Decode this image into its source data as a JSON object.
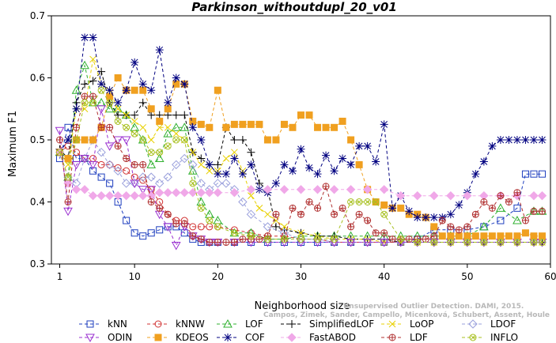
{
  "chart_data": {
    "type": "line",
    "title": "Parkinson_withoutdupl_20_v01",
    "xlabel": "Neighborhood size",
    "ylabel": "Maximum F1",
    "xlim": [
      0,
      60
    ],
    "ylim": [
      0.3,
      0.7
    ],
    "xticks": [
      1,
      10,
      20,
      30,
      40,
      50,
      60
    ],
    "yticks": [
      0.3,
      0.4,
      0.5,
      0.6,
      0.7
    ],
    "legend_position": "bottom",
    "watermark": [
      "Unsupervised Outlier Detection. DAMI, 2015.",
      "Campos, Zimek, Sander, Campello, Micenková, Schubert, Assent, Houle"
    ],
    "series": [
      {
        "name": "kNN",
        "color": "#1f3fbf",
        "marker": "square",
        "x": [
          1,
          2,
          3,
          4,
          5,
          6,
          7,
          8,
          9,
          10,
          11,
          12,
          13,
          14,
          15,
          16,
          17,
          18,
          19,
          20,
          22,
          24,
          26,
          28,
          30,
          32,
          34,
          36,
          38,
          40,
          42,
          44,
          46,
          48,
          50,
          52,
          54,
          56,
          57,
          58,
          59
        ],
        "y": [
          0.47,
          0.52,
          0.47,
          0.47,
          0.45,
          0.44,
          0.43,
          0.4,
          0.37,
          0.35,
          0.345,
          0.35,
          0.355,
          0.36,
          0.36,
          0.35,
          0.34,
          0.335,
          0.335,
          0.335,
          0.335,
          0.335,
          0.335,
          0.335,
          0.335,
          0.335,
          0.335,
          0.335,
          0.335,
          0.335,
          0.335,
          0.34,
          0.355,
          0.355,
          0.355,
          0.36,
          0.37,
          0.39,
          0.445,
          0.445,
          0.445
        ]
      },
      {
        "name": "kNNW",
        "color": "#d03030",
        "marker": "circle",
        "x": [
          1,
          2,
          3,
          4,
          5,
          6,
          7,
          8,
          9,
          10,
          11,
          12,
          13,
          14,
          15,
          16,
          17,
          18,
          19,
          20,
          22,
          24,
          26,
          28,
          30,
          32,
          34,
          36,
          38,
          40,
          42,
          44,
          46,
          48,
          50,
          52,
          54,
          56,
          58,
          59
        ],
        "y": [
          0.48,
          0.49,
          0.48,
          0.47,
          0.47,
          0.46,
          0.46,
          0.455,
          0.45,
          0.44,
          0.435,
          0.42,
          0.4,
          0.38,
          0.37,
          0.37,
          0.36,
          0.36,
          0.36,
          0.36,
          0.355,
          0.35,
          0.345,
          0.345,
          0.34,
          0.34,
          0.335,
          0.335,
          0.335,
          0.335,
          0.335,
          0.335,
          0.335,
          0.335,
          0.335,
          0.335,
          0.335,
          0.335,
          0.335,
          0.335
        ]
      },
      {
        "name": "LOF",
        "color": "#2fb02f",
        "marker": "triangle",
        "x": [
          1,
          2,
          3,
          4,
          5,
          6,
          7,
          8,
          9,
          10,
          11,
          12,
          13,
          14,
          15,
          16,
          17,
          18,
          19,
          20,
          22,
          24,
          26,
          28,
          30,
          32,
          34,
          36,
          38,
          40,
          42,
          44,
          46,
          48,
          50,
          52,
          54,
          56,
          58,
          59
        ],
        "y": [
          0.48,
          0.44,
          0.58,
          0.62,
          0.56,
          0.56,
          0.55,
          0.55,
          0.54,
          0.52,
          0.5,
          0.46,
          0.47,
          0.51,
          0.52,
          0.52,
          0.45,
          0.4,
          0.38,
          0.37,
          0.35,
          0.35,
          0.34,
          0.34,
          0.345,
          0.345,
          0.345,
          0.345,
          0.345,
          0.345,
          0.345,
          0.345,
          0.345,
          0.345,
          0.345,
          0.36,
          0.39,
          0.37,
          0.385,
          0.385
        ]
      },
      {
        "name": "SimplifiedLOF",
        "color": "#000000",
        "marker": "plus",
        "x": [
          1,
          2,
          3,
          4,
          5,
          6,
          7,
          8,
          9,
          10,
          11,
          12,
          13,
          14,
          15,
          16,
          17,
          18,
          19,
          20,
          21,
          22,
          23,
          24,
          25,
          26,
          27,
          28,
          30,
          32,
          34,
          36,
          38,
          40,
          42,
          44,
          46,
          48,
          50,
          52,
          54,
          56,
          58,
          59
        ],
        "y": [
          0.485,
          0.47,
          0.56,
          0.59,
          0.595,
          0.61,
          0.56,
          0.54,
          0.54,
          0.54,
          0.56,
          0.54,
          0.54,
          0.54,
          0.54,
          0.54,
          0.48,
          0.47,
          0.46,
          0.46,
          0.52,
          0.5,
          0.5,
          0.48,
          0.43,
          0.42,
          0.36,
          0.355,
          0.35,
          0.345,
          0.345,
          0.34,
          0.34,
          0.34,
          0.335,
          0.335,
          0.335,
          0.335,
          0.335,
          0.335,
          0.335,
          0.335,
          0.335,
          0.335
        ]
      },
      {
        "name": "LoOP",
        "color": "#e8d000",
        "marker": "cross",
        "x": [
          1,
          2,
          3,
          4,
          5,
          6,
          7,
          8,
          9,
          10,
          11,
          12,
          13,
          14,
          15,
          16,
          17,
          18,
          19,
          20,
          21,
          22,
          23,
          24,
          25,
          26,
          27,
          28,
          30,
          32,
          34,
          36,
          38,
          40,
          42,
          44,
          46,
          48,
          50,
          52,
          54,
          56,
          58,
          59
        ],
        "y": [
          0.48,
          0.46,
          0.55,
          0.55,
          0.63,
          0.59,
          0.58,
          0.55,
          0.54,
          0.53,
          0.52,
          0.5,
          0.52,
          0.52,
          0.51,
          0.5,
          0.48,
          0.46,
          0.45,
          0.45,
          0.47,
          0.48,
          0.45,
          0.41,
          0.39,
          0.38,
          0.37,
          0.36,
          0.35,
          0.345,
          0.34,
          0.34,
          0.34,
          0.335,
          0.335,
          0.335,
          0.335,
          0.335,
          0.335,
          0.335,
          0.335,
          0.335,
          0.335,
          0.335
        ]
      },
      {
        "name": "LDOF",
        "color": "#9aa0dc",
        "marker": "diamond",
        "x": [
          1,
          2,
          3,
          4,
          5,
          6,
          7,
          8,
          9,
          10,
          11,
          12,
          13,
          14,
          15,
          16,
          17,
          18,
          19,
          20,
          21,
          22,
          23,
          24,
          26,
          28,
          30,
          32,
          34,
          36,
          38,
          40,
          42,
          44,
          46,
          48,
          50,
          52,
          54,
          56,
          58,
          59
        ],
        "y": [
          0.48,
          0.44,
          0.43,
          0.47,
          0.5,
          0.48,
          0.46,
          0.45,
          0.43,
          0.43,
          0.44,
          0.44,
          0.43,
          0.44,
          0.46,
          0.47,
          0.46,
          0.43,
          0.42,
          0.43,
          0.43,
          0.42,
          0.4,
          0.38,
          0.36,
          0.35,
          0.34,
          0.34,
          0.335,
          0.335,
          0.335,
          0.335,
          0.335,
          0.335,
          0.335,
          0.335,
          0.335,
          0.335,
          0.335,
          0.335,
          0.335,
          0.335
        ]
      },
      {
        "name": "ODIN",
        "color": "#9a30d0",
        "marker": "triangle-down",
        "x": [
          1,
          2,
          3,
          4,
          5,
          6,
          7,
          8,
          9,
          10,
          11,
          12,
          13,
          14,
          15,
          16,
          17,
          18,
          19,
          20,
          22,
          24,
          26,
          28,
          30,
          32,
          34,
          36,
          38,
          40,
          42,
          44,
          46,
          48,
          50,
          52,
          54,
          56,
          58,
          59
        ],
        "y": [
          0.515,
          0.385,
          0.46,
          0.47,
          0.46,
          0.55,
          0.49,
          0.5,
          0.5,
          0.43,
          0.42,
          0.42,
          0.38,
          0.36,
          0.33,
          0.36,
          0.345,
          0.34,
          0.335,
          0.335,
          0.335,
          0.335,
          0.335,
          0.335,
          0.335,
          0.335,
          0.335,
          0.335,
          0.335,
          0.335,
          0.335,
          0.335,
          0.335,
          0.335,
          0.335,
          0.335,
          0.335,
          0.335,
          0.335,
          0.335
        ]
      },
      {
        "name": "KDEOS",
        "color": "#f0a020",
        "marker": "square-filled",
        "x": [
          1,
          2,
          3,
          4,
          5,
          6,
          7,
          8,
          9,
          10,
          11,
          12,
          13,
          14,
          15,
          16,
          17,
          18,
          19,
          20,
          21,
          22,
          23,
          24,
          25,
          26,
          27,
          28,
          29,
          30,
          31,
          32,
          33,
          34,
          35,
          36,
          37,
          38,
          39,
          40,
          41,
          42,
          43,
          44,
          45,
          46,
          47,
          48,
          49,
          50,
          51,
          52,
          53,
          54,
          55,
          56,
          57,
          58,
          59
        ],
        "y": [
          0.48,
          0.47,
          0.5,
          0.5,
          0.5,
          0.52,
          0.57,
          0.6,
          0.58,
          0.58,
          0.58,
          0.55,
          0.53,
          0.55,
          0.59,
          0.59,
          0.53,
          0.525,
          0.52,
          0.58,
          0.52,
          0.525,
          0.525,
          0.525,
          0.525,
          0.5,
          0.5,
          0.525,
          0.52,
          0.54,
          0.54,
          0.52,
          0.52,
          0.52,
          0.53,
          0.5,
          0.46,
          0.42,
          0.4,
          0.395,
          0.39,
          0.39,
          0.38,
          0.38,
          0.375,
          0.36,
          0.345,
          0.345,
          0.345,
          0.345,
          0.345,
          0.345,
          0.345,
          0.345,
          0.345,
          0.345,
          0.35,
          0.345,
          0.345
        ]
      },
      {
        "name": "COF",
        "color": "#000080",
        "marker": "star",
        "x": [
          1,
          2,
          3,
          4,
          5,
          6,
          7,
          8,
          9,
          10,
          11,
          12,
          13,
          14,
          15,
          16,
          17,
          18,
          19,
          20,
          21,
          22,
          23,
          24,
          25,
          26,
          27,
          28,
          29,
          30,
          31,
          32,
          33,
          34,
          35,
          36,
          37,
          38,
          39,
          40,
          41,
          42,
          43,
          44,
          45,
          46,
          47,
          48,
          49,
          50,
          51,
          52,
          53,
          54,
          55,
          56,
          57,
          58,
          59
        ],
        "y": [
          0.48,
          0.5,
          0.55,
          0.665,
          0.665,
          0.59,
          0.58,
          0.56,
          0.58,
          0.625,
          0.59,
          0.58,
          0.645,
          0.56,
          0.6,
          0.59,
          0.52,
          0.5,
          0.46,
          0.445,
          0.445,
          0.47,
          0.445,
          0.46,
          0.42,
          0.415,
          0.43,
          0.46,
          0.45,
          0.485,
          0.455,
          0.445,
          0.475,
          0.45,
          0.47,
          0.46,
          0.49,
          0.49,
          0.465,
          0.525,
          0.39,
          0.41,
          0.385,
          0.375,
          0.375,
          0.375,
          0.375,
          0.38,
          0.395,
          0.415,
          0.445,
          0.465,
          0.49,
          0.5,
          0.5,
          0.5,
          0.5,
          0.5,
          0.5
        ]
      },
      {
        "name": "FastABOD",
        "color": "#f0a8e8",
        "marker": "diamond-filled",
        "x": [
          1,
          2,
          3,
          4,
          5,
          6,
          7,
          8,
          9,
          10,
          11,
          12,
          13,
          14,
          15,
          16,
          17,
          18,
          19,
          20,
          22,
          24,
          26,
          28,
          30,
          32,
          34,
          36,
          38,
          40,
          42,
          44,
          46,
          48,
          50,
          52,
          54,
          56,
          58,
          59
        ],
        "y": [
          0.48,
          0.43,
          0.42,
          0.42,
          0.41,
          0.41,
          0.41,
          0.41,
          0.41,
          0.41,
          0.41,
          0.41,
          0.415,
          0.415,
          0.415,
          0.415,
          0.415,
          0.415,
          0.415,
          0.415,
          0.415,
          0.42,
          0.42,
          0.42,
          0.42,
          0.42,
          0.42,
          0.42,
          0.42,
          0.42,
          0.41,
          0.41,
          0.41,
          0.41,
          0.41,
          0.41,
          0.41,
          0.41,
          0.41,
          0.41
        ]
      },
      {
        "name": "LDF",
        "color": "#b03030",
        "marker": "circle-plus",
        "x": [
          1,
          2,
          3,
          4,
          5,
          6,
          7,
          8,
          9,
          10,
          11,
          12,
          13,
          14,
          15,
          16,
          17,
          18,
          19,
          20,
          21,
          22,
          23,
          24,
          25,
          26,
          27,
          28,
          29,
          30,
          31,
          32,
          33,
          34,
          35,
          36,
          37,
          38,
          39,
          40,
          41,
          42,
          43,
          44,
          45,
          46,
          47,
          48,
          49,
          50,
          51,
          52,
          53,
          54,
          55,
          56,
          57,
          58,
          59
        ],
        "y": [
          0.5,
          0.4,
          0.52,
          0.57,
          0.57,
          0.52,
          0.52,
          0.49,
          0.47,
          0.46,
          0.46,
          0.4,
          0.39,
          0.38,
          0.365,
          0.365,
          0.345,
          0.34,
          0.335,
          0.335,
          0.335,
          0.335,
          0.34,
          0.34,
          0.34,
          0.345,
          0.38,
          0.34,
          0.39,
          0.38,
          0.4,
          0.39,
          0.425,
          0.38,
          0.39,
          0.36,
          0.38,
          0.37,
          0.35,
          0.35,
          0.34,
          0.34,
          0.34,
          0.34,
          0.34,
          0.345,
          0.37,
          0.36,
          0.355,
          0.36,
          0.38,
          0.4,
          0.39,
          0.41,
          0.4,
          0.415,
          0.37,
          0.385,
          0.385
        ]
      },
      {
        "name": "INFLO",
        "color": "#a8c020",
        "marker": "circle-x",
        "x": [
          1,
          2,
          3,
          4,
          5,
          6,
          7,
          8,
          9,
          10,
          11,
          12,
          13,
          14,
          15,
          16,
          17,
          18,
          19,
          20,
          22,
          24,
          26,
          28,
          30,
          32,
          34,
          36,
          37,
          38,
          39,
          40,
          42,
          44,
          46,
          48,
          50,
          52,
          54,
          56,
          58,
          59
        ],
        "y": [
          0.48,
          0.44,
          0.5,
          0.56,
          0.56,
          0.58,
          0.56,
          0.53,
          0.52,
          0.51,
          0.5,
          0.48,
          0.48,
          0.49,
          0.5,
          0.5,
          0.43,
          0.39,
          0.37,
          0.36,
          0.35,
          0.345,
          0.34,
          0.34,
          0.34,
          0.34,
          0.34,
          0.4,
          0.4,
          0.4,
          0.4,
          0.38,
          0.34,
          0.335,
          0.335,
          0.335,
          0.335,
          0.335,
          0.335,
          0.335,
          0.335,
          0.335
        ]
      }
    ],
    "legend_layout": [
      [
        "kNN",
        "kNNW",
        "LOF",
        "SimplifiedLOF",
        "LoOP",
        "LDOF"
      ],
      [
        "ODIN",
        "KDEOS",
        "COF",
        "FastABOD",
        "LDF",
        "INFLO"
      ]
    ]
  }
}
